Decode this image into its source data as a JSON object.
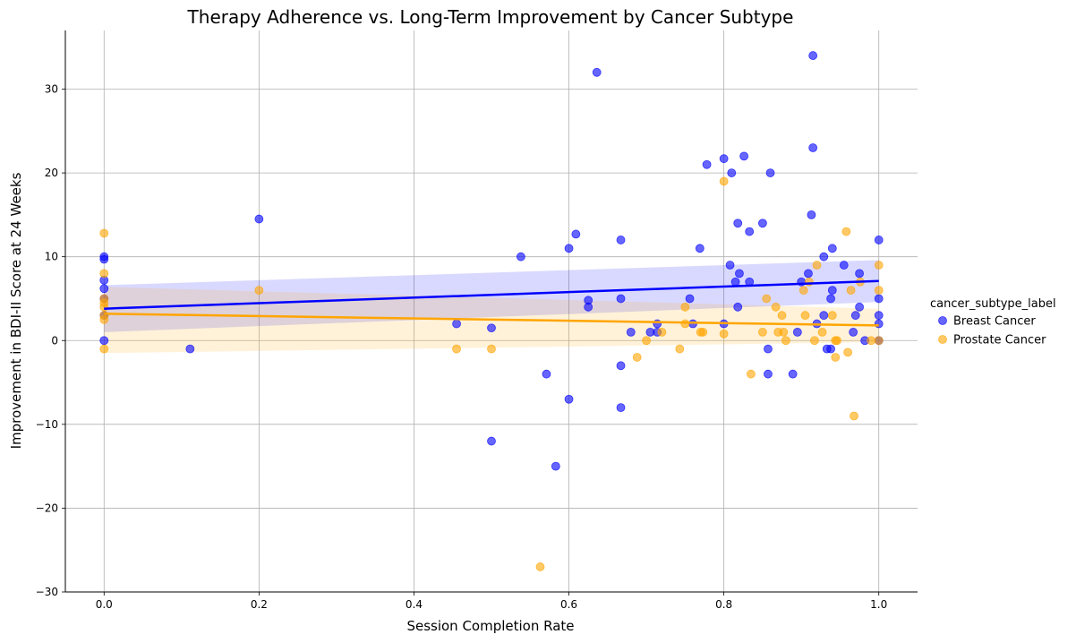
{
  "chart_data": {
    "type": "scatter",
    "title": "Therapy Adherence vs. Long-Term Improvement by Cancer Subtype",
    "xlabel": "Session Completion Rate",
    "ylabel": "Improvement in BDI-II Score at 24 Weeks",
    "xlim": [
      -0.05,
      1.05
    ],
    "ylim": [
      -30,
      37
    ],
    "xticks": [
      0.0,
      0.2,
      0.4,
      0.6,
      0.8,
      1.0
    ],
    "xtick_labels": [
      "0.0",
      "0.2",
      "0.4",
      "0.6",
      "0.8",
      "1.0"
    ],
    "yticks": [
      -30,
      -20,
      -10,
      0,
      10,
      20,
      30
    ],
    "ytick_labels": [
      "−30",
      "−20",
      "−10",
      "0",
      "10",
      "20",
      "30"
    ],
    "grid": true,
    "legend": {
      "title": "cancer_subtype_label",
      "placement": "right"
    },
    "series": [
      {
        "name": "Breast Cancer",
        "color": "#0000ff",
        "regression": {
          "x": [
            0.0,
            1.0
          ],
          "y": [
            3.8,
            7.1
          ],
          "ci_low": [
            1.0,
            4.6
          ],
          "ci_high": [
            6.6,
            9.6
          ]
        },
        "points": [
          [
            0.0,
            10
          ],
          [
            0.0,
            9.7
          ],
          [
            0.0,
            7.2
          ],
          [
            0.0,
            6.2
          ],
          [
            0.0,
            5
          ],
          [
            0.0,
            3
          ],
          [
            0.0,
            0
          ],
          [
            0.111,
            -1
          ],
          [
            0.2,
            14.5
          ],
          [
            0.455,
            2
          ],
          [
            0.5,
            1.5
          ],
          [
            0.5,
            -12
          ],
          [
            0.538,
            10
          ],
          [
            0.571,
            -4
          ],
          [
            0.583,
            -15
          ],
          [
            0.6,
            11
          ],
          [
            0.6,
            -7
          ],
          [
            0.609,
            12.7
          ],
          [
            0.625,
            4.8
          ],
          [
            0.625,
            4
          ],
          [
            0.636,
            32
          ],
          [
            0.667,
            12
          ],
          [
            0.667,
            5
          ],
          [
            0.667,
            -3
          ],
          [
            0.667,
            -8
          ],
          [
            0.68,
            1
          ],
          [
            0.705,
            1
          ],
          [
            0.714,
            2
          ],
          [
            0.714,
            1
          ],
          [
            0.76,
            2
          ],
          [
            0.756,
            5
          ],
          [
            0.769,
            11
          ],
          [
            0.778,
            21
          ],
          [
            0.8,
            21.7
          ],
          [
            0.8,
            2
          ],
          [
            0.808,
            9
          ],
          [
            0.81,
            20
          ],
          [
            0.815,
            7
          ],
          [
            0.818,
            14
          ],
          [
            0.818,
            4
          ],
          [
            0.82,
            8
          ],
          [
            0.826,
            22
          ],
          [
            0.833,
            13
          ],
          [
            0.833,
            7
          ],
          [
            0.85,
            14
          ],
          [
            0.857,
            -1
          ],
          [
            0.857,
            -4
          ],
          [
            0.86,
            20
          ],
          [
            0.889,
            -4
          ],
          [
            0.895,
            1
          ],
          [
            0.9,
            7
          ],
          [
            0.909,
            8
          ],
          [
            0.913,
            15
          ],
          [
            0.915,
            34
          ],
          [
            0.915,
            23
          ],
          [
            0.92,
            2
          ],
          [
            0.929,
            10
          ],
          [
            0.929,
            3
          ],
          [
            0.933,
            -1
          ],
          [
            0.938,
            -1
          ],
          [
            0.938,
            5
          ],
          [
            0.94,
            6
          ],
          [
            0.94,
            11
          ],
          [
            0.955,
            9
          ],
          [
            0.967,
            1
          ],
          [
            0.97,
            3
          ],
          [
            0.975,
            8
          ],
          [
            0.975,
            4
          ],
          [
            0.982,
            0
          ],
          [
            1.0,
            12
          ],
          [
            1.0,
            5
          ],
          [
            1.0,
            3
          ],
          [
            1.0,
            2
          ],
          [
            1.0,
            0
          ]
        ]
      },
      {
        "name": "Prostate Cancer",
        "color": "#ffa500",
        "regression": {
          "x": [
            0.0,
            1.0
          ],
          "y": [
            3.2,
            1.8
          ],
          "ci_low": [
            -1.5,
            -0.2
          ],
          "ci_high": [
            6.4,
            3.8
          ]
        },
        "points": [
          [
            0.0,
            12.8
          ],
          [
            0.0,
            8
          ],
          [
            0.0,
            5
          ],
          [
            0.0,
            4.5
          ],
          [
            0.0,
            4
          ],
          [
            0.0,
            3
          ],
          [
            0.0,
            2.5
          ],
          [
            0.0,
            -1
          ],
          [
            0.2,
            6
          ],
          [
            0.455,
            -1
          ],
          [
            0.5,
            -1
          ],
          [
            0.563,
            -27
          ],
          [
            0.688,
            -2
          ],
          [
            0.7,
            0
          ],
          [
            0.72,
            1
          ],
          [
            0.743,
            -1
          ],
          [
            0.75,
            4
          ],
          [
            0.75,
            2
          ],
          [
            0.77,
            1
          ],
          [
            0.773,
            1
          ],
          [
            0.8,
            19
          ],
          [
            0.8,
            0.8
          ],
          [
            0.835,
            -4
          ],
          [
            0.85,
            1
          ],
          [
            0.855,
            5
          ],
          [
            0.867,
            4
          ],
          [
            0.87,
            1
          ],
          [
            0.875,
            3
          ],
          [
            0.877,
            1
          ],
          [
            0.88,
            0
          ],
          [
            0.903,
            6
          ],
          [
            0.905,
            3
          ],
          [
            0.91,
            7
          ],
          [
            0.917,
            0
          ],
          [
            0.92,
            9
          ],
          [
            0.927,
            1
          ],
          [
            0.94,
            3
          ],
          [
            0.944,
            0
          ],
          [
            0.944,
            -2
          ],
          [
            0.946,
            0
          ],
          [
            0.958,
            13
          ],
          [
            0.96,
            -1.4
          ],
          [
            0.964,
            6
          ],
          [
            0.968,
            -9
          ],
          [
            0.976,
            7
          ],
          [
            0.99,
            0
          ],
          [
            1.0,
            9
          ],
          [
            1.0,
            6
          ],
          [
            1.0,
            0
          ]
        ]
      }
    ]
  }
}
